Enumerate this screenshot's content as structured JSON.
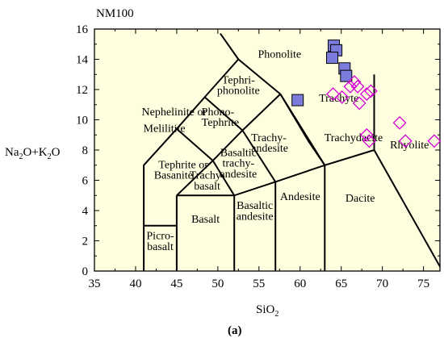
{
  "chart_data": {
    "type": "scatter",
    "title": "NM100",
    "xlabel": "SiO",
    "xlabel_sub": "2",
    "ylabel_parts": [
      "Na",
      "2",
      "O+K",
      "2",
      "O"
    ],
    "caption": "(a)",
    "xlim": [
      35,
      77
    ],
    "ylim": [
      0,
      16
    ],
    "x_ticks": [
      "35",
      "40",
      "45",
      "50",
      "55",
      "60",
      "65",
      "70",
      "75"
    ],
    "y_ticks": [
      "0",
      "2",
      "4",
      "6",
      "8",
      "10",
      "12",
      "14",
      "16"
    ],
    "background": "#ffffe0",
    "square_color": "#7b7bdb",
    "diamond_color": "#d400d4",
    "field_lines": [
      [
        [
          41,
          0
        ],
        [
          41,
          7
        ],
        [
          45,
          9.4
        ],
        [
          48.4,
          11.5
        ],
        [
          52.5,
          14
        ],
        [
          57.6,
          11.7
        ],
        [
          61,
          8.6
        ],
        [
          63,
          7
        ],
        [
          69,
          8
        ],
        [
          77.3,
          0
        ]
      ],
      [
        [
          41,
          3
        ],
        [
          45,
          3
        ]
      ],
      [
        [
          45,
          0
        ],
        [
          45,
          5
        ]
      ],
      [
        [
          45,
          5
        ],
        [
          52,
          5
        ],
        [
          57,
          5.9
        ],
        [
          63,
          7
        ]
      ],
      [
        [
          52,
          0
        ],
        [
          52,
          5
        ]
      ],
      [
        [
          57,
          0
        ],
        [
          57,
          5.9
        ]
      ],
      [
        [
          63,
          0
        ],
        [
          63,
          7
        ]
      ],
      [
        [
          45,
          5
        ],
        [
          49.4,
          7.3
        ],
        [
          53,
          9.3
        ],
        [
          57.6,
          11.7
        ]
      ],
      [
        [
          52,
          5
        ],
        [
          49.4,
          7.3
        ],
        [
          45,
          9.4
        ]
      ],
      [
        [
          57,
          5.9
        ],
        [
          53,
          9.3
        ],
        [
          48.4,
          11.5
        ]
      ],
      [
        [
          63,
          7
        ],
        [
          57.6,
          11.7
        ]
      ],
      [
        [
          52.5,
          14
        ],
        [
          50.3,
          15.7
        ]
      ],
      [
        [
          69,
          8
        ],
        [
          69,
          13
        ]
      ]
    ],
    "field_labels": [
      {
        "text": "Phonolite",
        "x": 57.5,
        "y": 14.1
      },
      {
        "text": "Tephri-",
        "x": 52.5,
        "y": 12.4
      },
      {
        "text": "phonolite",
        "x": 52.5,
        "y": 11.7
      },
      {
        "text": "Trachyte",
        "x": 64.7,
        "y": 11.2
      },
      {
        "text": "Nephelinite or",
        "x": 44.7,
        "y": 10.3
      },
      {
        "text": "Melilitite",
        "x": 43.5,
        "y": 9.2
      },
      {
        "text": "Phono-",
        "x": 50,
        "y": 10.3
      },
      {
        "text": "Tephrite",
        "x": 50.3,
        "y": 9.6
      },
      {
        "text": "Trachy-",
        "x": 56.2,
        "y": 8.6
      },
      {
        "text": "andesite",
        "x": 56.3,
        "y": 7.9
      },
      {
        "text": "Trachydacite",
        "x": 66.5,
        "y": 8.6
      },
      {
        "text": "Rhyolite",
        "x": 73.3,
        "y": 8.1
      },
      {
        "text": "Basaltic",
        "x": 52.5,
        "y": 7.6
      },
      {
        "text": "trachy-",
        "x": 52.5,
        "y": 6.9
      },
      {
        "text": "andesite",
        "x": 52.5,
        "y": 6.2
      },
      {
        "text": "Tephrite or",
        "x": 45.8,
        "y": 6.8
      },
      {
        "text": "Basanite",
        "x": 44.6,
        "y": 6.1
      },
      {
        "text": "Trachy-",
        "x": 48.7,
        "y": 6.1
      },
      {
        "text": "basalt",
        "x": 48.7,
        "y": 5.4
      },
      {
        "text": "Andesite",
        "x": 60,
        "y": 4.7
      },
      {
        "text": "Dacite",
        "x": 67.3,
        "y": 4.6
      },
      {
        "text": "Basalt",
        "x": 48.5,
        "y": 3.2
      },
      {
        "text": "Basaltic",
        "x": 54.5,
        "y": 4.1
      },
      {
        "text": "andesite",
        "x": 54.5,
        "y": 3.4
      },
      {
        "text": "Picro-",
        "x": 43,
        "y": 2.1
      },
      {
        "text": "basalt",
        "x": 43,
        "y": 1.4
      }
    ],
    "series": [
      {
        "marker": "square",
        "points": [
          [
            64.1,
            14.9
          ],
          [
            64.4,
            14.6
          ],
          [
            63.9,
            14.1
          ],
          [
            65.4,
            13.4
          ],
          [
            65.6,
            12.9
          ],
          [
            59.7,
            11.3
          ]
        ]
      },
      {
        "marker": "diamond",
        "points": [
          [
            64.0,
            11.7
          ],
          [
            65.1,
            11.5
          ],
          [
            66.1,
            12.2
          ],
          [
            66.6,
            12.5
          ],
          [
            67.0,
            12.2
          ],
          [
            68.1,
            11.7
          ],
          [
            68.6,
            11.9
          ],
          [
            67.2,
            11.1
          ],
          [
            68.1,
            9.0
          ],
          [
            68.4,
            8.6
          ],
          [
            72.1,
            9.8
          ],
          [
            72.8,
            8.6
          ],
          [
            76.3,
            8.6
          ]
        ]
      }
    ]
  }
}
